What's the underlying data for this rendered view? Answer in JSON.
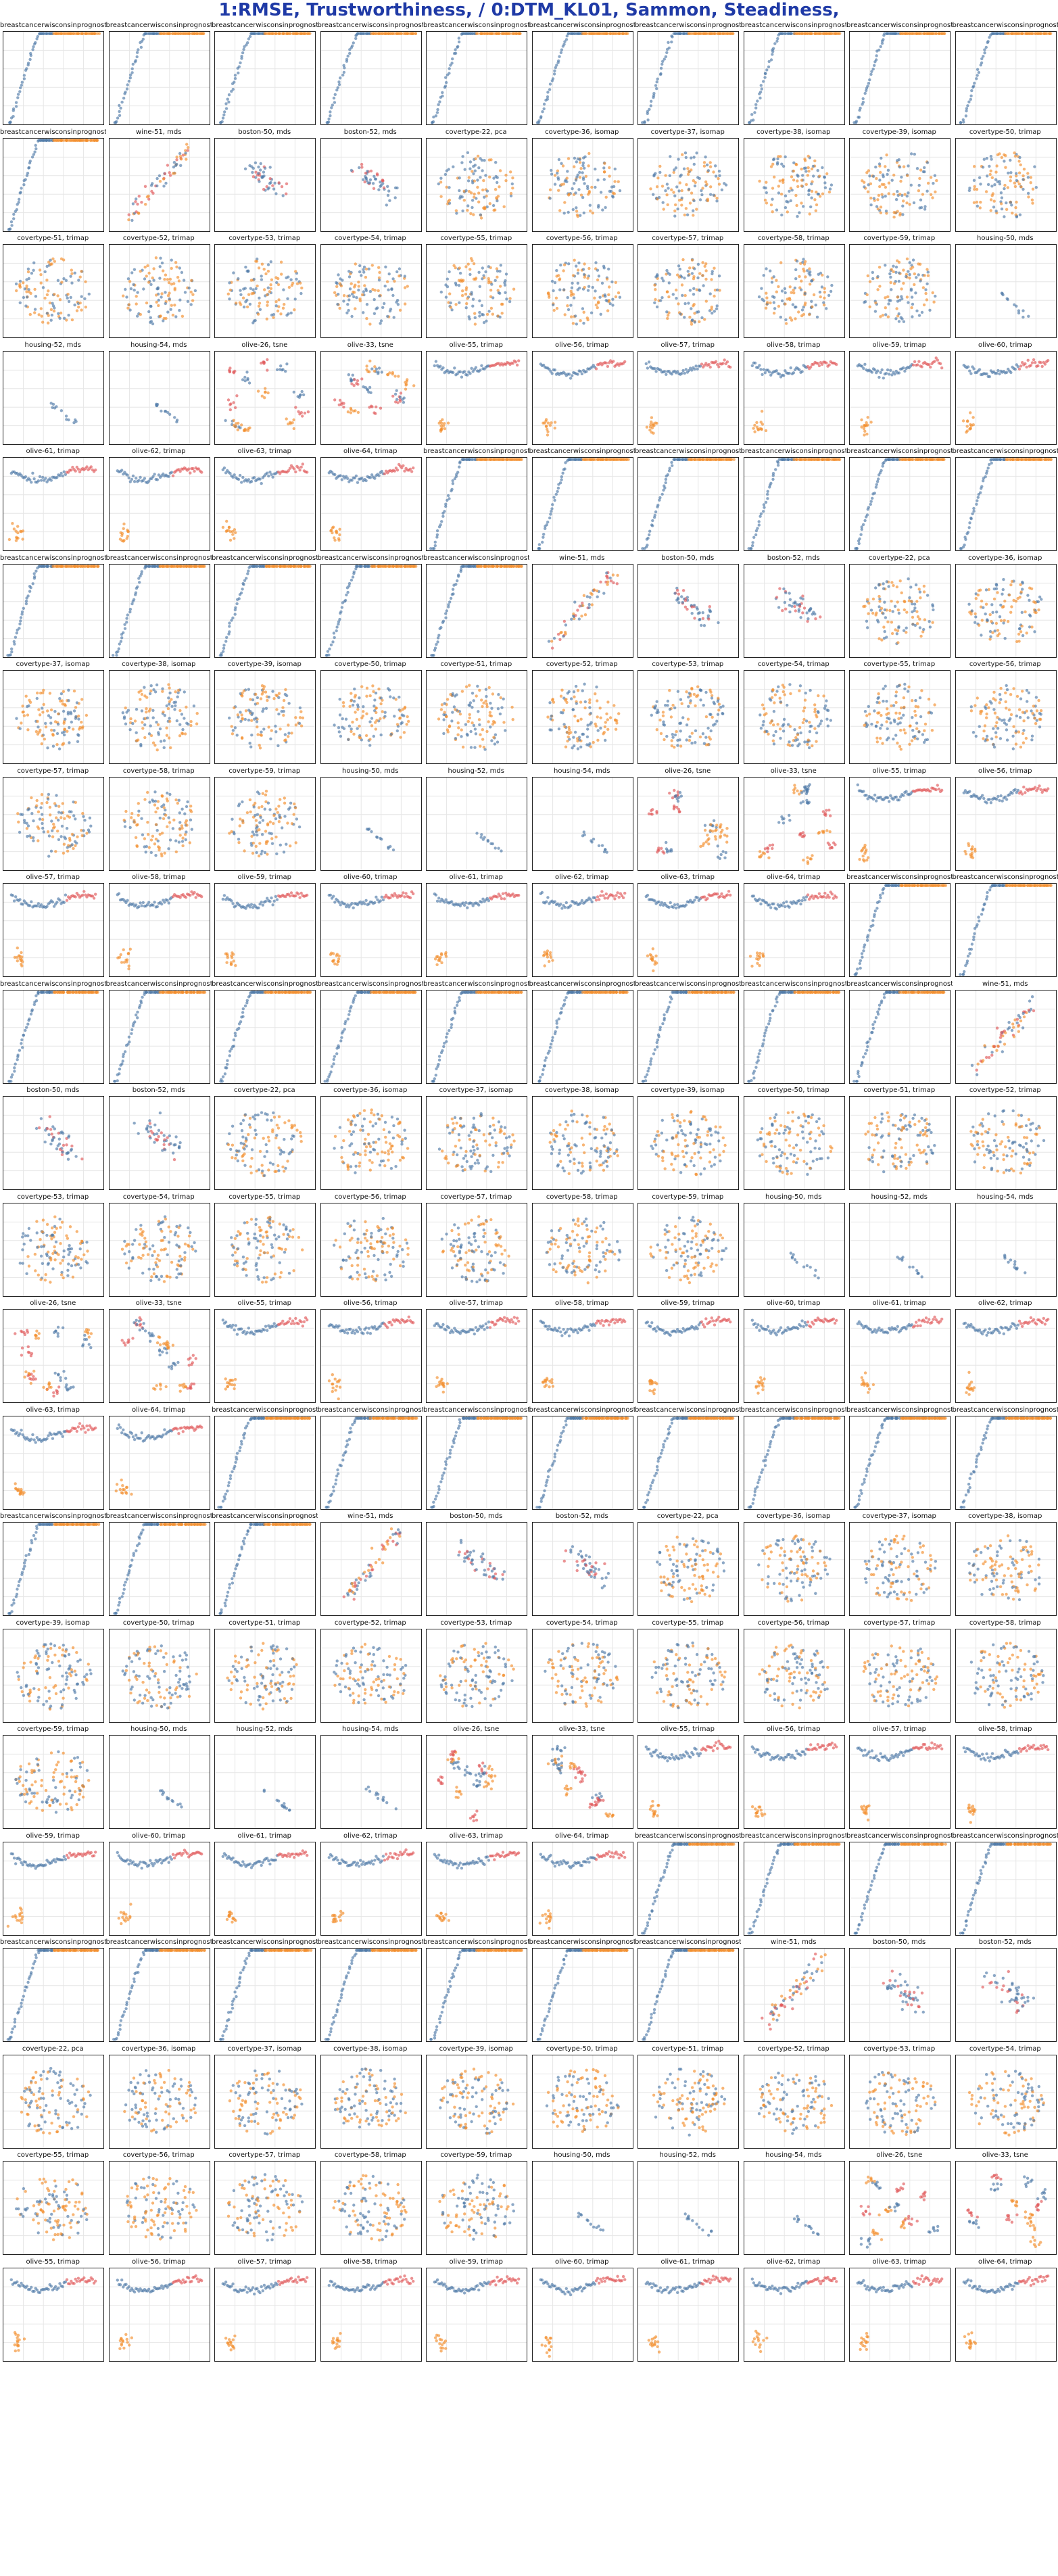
{
  "page": {
    "title": "1:RMSE, Trustworthiness,  / 0:DTM_KL01, Sammon, Steadiness,"
  },
  "colors": {
    "blue": "#4e79a7",
    "orange": "#f28e2b",
    "red": "#e15759",
    "grid": "#e6e6e6",
    "title": "#1f3aa6"
  },
  "chart_data": {
    "type": "scatter",
    "layout": "grid of small-multiple scatter plots, 10 columns x 24 rows",
    "axes": "no tick labels, light grid",
    "panels": [
      "breastcancerwisconsinprognostic",
      "breastcancerwisconsinprognostic",
      "breastcancerwisconsinprognostic",
      "breastcancerwisconsinprognostic",
      "breastcancerwisconsinprognostic",
      "breastcancerwisconsinprognostic",
      "breastcancerwisconsinprognostic",
      "breastcancerwisconsinprognostic",
      "breastcancerwisconsinprognostic",
      "breastcancerwisconsinprognostic",
      "breastcancerwisconsinprognostic",
      "wine-51, mds",
      "boston-50, mds",
      "boston-52, mds",
      "covertype-22, pca",
      "covertype-36, isomap",
      "covertype-37, isomap",
      "covertype-38, isomap",
      "covertype-39, isomap",
      "covertype-50, trimap",
      "covertype-51, trimap",
      "covertype-52, trimap",
      "covertype-53, trimap",
      "covertype-54, trimap",
      "covertype-55, trimap",
      "covertype-56, trimap",
      "covertype-57, trimap",
      "covertype-58, trimap",
      "covertype-59, trimap",
      "housing-50, mds",
      "housing-52, mds",
      "housing-54, mds",
      "olive-26, tsne",
      "olive-33, tsne",
      "olive-55, trimap",
      "olive-56, trimap",
      "olive-57, trimap",
      "olive-58, trimap",
      "olive-59, trimap",
      "olive-60, trimap",
      "olive-61, trimap",
      "olive-62, trimap",
      "olive-63, trimap",
      "olive-64, trimap",
      "breastcancerwisconsinprognostic",
      "breastcancerwisconsinprognostic",
      "breastcancerwisconsinprognostic",
      "breastcancerwisconsinprognostic",
      "breastcancerwisconsinprognostic",
      "breastcancerwisconsinprognostic",
      "breastcancerwisconsinprognostic",
      "breastcancerwisconsinprognostic",
      "breastcancerwisconsinprognostic",
      "breastcancerwisconsinprognostic",
      "breastcancerwisconsinprognostic",
      "wine-51, mds",
      "boston-50, mds",
      "boston-52, mds",
      "covertype-22, pca",
      "covertype-36, isomap",
      "covertype-37, isomap",
      "covertype-38, isomap",
      "covertype-39, isomap",
      "covertype-50, trimap",
      "covertype-51, trimap",
      "covertype-52, trimap",
      "covertype-53, trimap",
      "covertype-54, trimap",
      "covertype-55, trimap",
      "covertype-56, trimap",
      "covertype-57, trimap",
      "covertype-58, trimap",
      "covertype-59, trimap",
      "housing-50, mds",
      "housing-52, mds",
      "housing-54, mds",
      "olive-26, tsne",
      "olive-33, tsne",
      "olive-55, trimap",
      "olive-56, trimap",
      "olive-57, trimap",
      "olive-58, trimap",
      "olive-59, trimap",
      "olive-60, trimap",
      "olive-61, trimap",
      "olive-62, trimap",
      "olive-63, trimap",
      "olive-64, trimap",
      "breastcancerwisconsinprognostic",
      "breastcancerwisconsinprognostic",
      "breastcancerwisconsinprognostic",
      "breastcancerwisconsinprognostic",
      "breastcancerwisconsinprognostic",
      "breastcancerwisconsinprognostic",
      "breastcancerwisconsinprognostic",
      "breastcancerwisconsinprognostic",
      "breastcancerwisconsinprognostic",
      "breastcancerwisconsinprognostic",
      "breastcancerwisconsinprognostic",
      "wine-51, mds",
      "boston-50, mds",
      "boston-52, mds",
      "covertype-22, pca",
      "covertype-36, isomap",
      "covertype-37, isomap",
      "covertype-38, isomap",
      "covertype-39, isomap",
      "covertype-50, trimap",
      "covertype-51, trimap",
      "covertype-52, trimap",
      "covertype-53, trimap",
      "covertype-54, trimap",
      "covertype-55, trimap",
      "covertype-56, trimap",
      "covertype-57, trimap",
      "covertype-58, trimap",
      "covertype-59, trimap",
      "housing-50, mds",
      "housing-52, mds",
      "housing-54, mds",
      "olive-26, tsne",
      "olive-33, tsne",
      "olive-55, trimap",
      "olive-56, trimap",
      "olive-57, trimap",
      "olive-58, trimap",
      "olive-59, trimap",
      "olive-60, trimap",
      "olive-61, trimap",
      "olive-62, trimap",
      "olive-63, trimap",
      "olive-64, trimap",
      "breastcancerwisconsinprognostic",
      "breastcancerwisconsinprognostic",
      "breastcancerwisconsinprognostic",
      "breastcancerwisconsinprognostic",
      "breastcancerwisconsinprognostic",
      "breastcancerwisconsinprognostic",
      "breastcancerwisconsinprognostic",
      "breastcancerwisconsinprognostic",
      "breastcancerwisconsinprognostic",
      "breastcancerwisconsinprognostic",
      "breastcancerwisconsinprognostic",
      "wine-51, mds",
      "boston-50, mds",
      "boston-52, mds",
      "covertype-22, pca",
      "covertype-36, isomap",
      "covertype-37, isomap",
      "covertype-38, isomap",
      "covertype-39, isomap",
      "covertype-50, trimap",
      "covertype-51, trimap",
      "covertype-52, trimap",
      "covertype-53, trimap",
      "covertype-54, trimap",
      "covertype-55, trimap",
      "covertype-56, trimap",
      "covertype-57, trimap",
      "covertype-58, trimap",
      "covertype-59, trimap",
      "housing-50, mds",
      "housing-52, mds",
      "housing-54, mds",
      "olive-26, tsne",
      "olive-33, tsne",
      "olive-55, trimap",
      "olive-56, trimap",
      "olive-57, trimap",
      "olive-58, trimap",
      "olive-59, trimap",
      "olive-60, trimap",
      "olive-61, trimap",
      "olive-62, trimap",
      "olive-63, trimap",
      "olive-64, trimap",
      "breastcancerwisconsinprognostic",
      "breastcancerwisconsinprognostic",
      "breastcancerwisconsinprognostic",
      "breastcancerwisconsinprognostic",
      "breastcancerwisconsinprognostic",
      "breastcancerwisconsinprognostic",
      "breastcancerwisconsinprognostic",
      "breastcancerwisconsinprognostic",
      "breastcancerwisconsinprognostic",
      "breastcancerwisconsinprognostic",
      "breastcancerwisconsinprognostic",
      "wine-51, mds",
      "boston-50, mds",
      "boston-52, mds",
      "covertype-22, pca",
      "covertype-36, isomap",
      "covertype-37, isomap",
      "covertype-38, isomap",
      "covertype-39, isomap",
      "covertype-50, trimap",
      "covertype-51, trimap",
      "covertype-52, trimap",
      "covertype-53, trimap",
      "covertype-54, trimap",
      "covertype-55, trimap",
      "covertype-56, trimap",
      "covertype-57, trimap",
      "covertype-58, trimap",
      "covertype-59, trimap",
      "housing-50, mds",
      "housing-52, mds",
      "housing-54, mds",
      "olive-26, tsne",
      "olive-33, tsne",
      "olive-55, trimap",
      "olive-56, trimap",
      "olive-57, trimap",
      "olive-58, trimap",
      "olive-59, trimap",
      "olive-60, trimap",
      "olive-61, trimap",
      "olive-62, trimap",
      "olive-63, trimap",
      "olive-64, trimap"
    ]
  }
}
